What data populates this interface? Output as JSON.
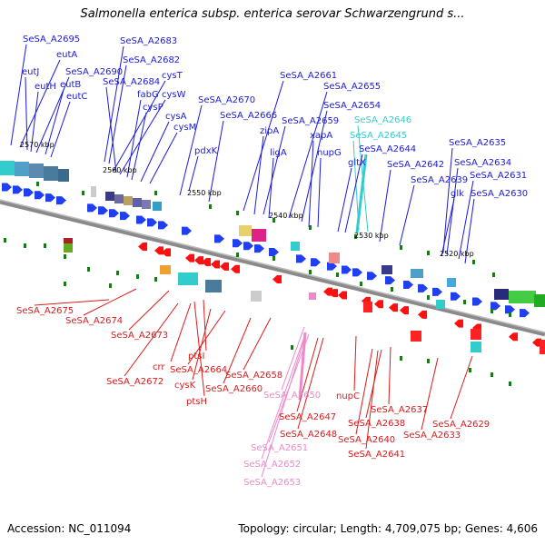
{
  "title": "Salmonella enterica subsp. enterica serovar Schwarzengrund s...",
  "footer": {
    "accession": "Accession: NC_011094",
    "stats": "Topology: circular; Length: 4,709,075 bp; Genes: 4,606"
  },
  "colors": {
    "top_label": "#1a1adc",
    "bottom_label": "#dc1a1a",
    "cyan_label": "#33cccc",
    "pink_label": "#ee88cc",
    "forward_arrow": "#1f3ff0",
    "reverse_arrow": "#ff1010",
    "backbone": "#8a8a8a",
    "tick_green": "#1a7a1a"
  },
  "kbp_ticks": [
    "2570 kbp",
    "2560 kbp",
    "2550 kbp",
    "2540 kbp",
    "2530 kbp",
    "2520 kbp"
  ],
  "top_labels": [
    {
      "text": "SeSA_A2695",
      "color": "blue"
    },
    {
      "text": "eutA",
      "color": "blue"
    },
    {
      "text": "SeSA_A2683",
      "color": "blue"
    },
    {
      "text": "SeSA_A2682",
      "color": "blue"
    },
    {
      "text": "eutJ",
      "color": "blue"
    },
    {
      "text": "SeSA_A2690",
      "color": "blue"
    },
    {
      "text": "cysT",
      "color": "blue"
    },
    {
      "text": "eutH",
      "color": "blue"
    },
    {
      "text": "eutB",
      "color": "blue"
    },
    {
      "text": "SeSA_A2684",
      "color": "blue"
    },
    {
      "text": "cysW",
      "color": "blue"
    },
    {
      "text": "eutC",
      "color": "blue"
    },
    {
      "text": "fabG",
      "color": "blue"
    },
    {
      "text": "cysP",
      "color": "blue"
    },
    {
      "text": "cysA",
      "color": "blue"
    },
    {
      "text": "cysM",
      "color": "blue"
    },
    {
      "text": "SeSA_A2670",
      "color": "blue"
    },
    {
      "text": "SeSA_A2666",
      "color": "blue"
    },
    {
      "text": "pdxK",
      "color": "blue"
    },
    {
      "text": "SeSA_A2661",
      "color": "blue"
    },
    {
      "text": "SeSA_A2655",
      "color": "blue"
    },
    {
      "text": "SeSA_A2654",
      "color": "blue"
    },
    {
      "text": "SeSA_A2659",
      "color": "blue"
    },
    {
      "text": "SeSA_A2646",
      "color": "cyan"
    },
    {
      "text": "zipA",
      "color": "blue"
    },
    {
      "text": "xapA",
      "color": "blue"
    },
    {
      "text": "SeSA_A2645",
      "color": "cyan"
    },
    {
      "text": "ligA",
      "color": "blue"
    },
    {
      "text": "nupG",
      "color": "blue"
    },
    {
      "text": "SeSA_A2644",
      "color": "blue"
    },
    {
      "text": "gltX",
      "color": "blue"
    },
    {
      "text": "SeSA_A2642",
      "color": "blue"
    },
    {
      "text": "SeSA_A2635",
      "color": "blue"
    },
    {
      "text": "SeSA_A2634",
      "color": "blue"
    },
    {
      "text": "SeSA_A2639",
      "color": "blue"
    },
    {
      "text": "SeSA_A2631",
      "color": "blue"
    },
    {
      "text": "glk",
      "color": "blue"
    },
    {
      "text": "SeSA_A2630",
      "color": "blue"
    }
  ],
  "bottom_labels": [
    {
      "text": "SeSA_A2675",
      "color": "red"
    },
    {
      "text": "SeSA_A2674",
      "color": "red"
    },
    {
      "text": "SeSA_A2673",
      "color": "red"
    },
    {
      "text": "ptsI",
      "color": "red"
    },
    {
      "text": "crr",
      "color": "red"
    },
    {
      "text": "SeSA_A2664",
      "color": "red"
    },
    {
      "text": "SeSA_A2672",
      "color": "red"
    },
    {
      "text": "cysK",
      "color": "red"
    },
    {
      "text": "SeSA_A2658",
      "color": "red"
    },
    {
      "text": "ptsH",
      "color": "red"
    },
    {
      "text": "SeSA_A2660",
      "color": "red"
    },
    {
      "text": "SeSA_A2650",
      "color": "pink"
    },
    {
      "text": "nupC",
      "color": "red"
    },
    {
      "text": "SeSA_A2637",
      "color": "red"
    },
    {
      "text": "SeSA_A2647",
      "color": "red"
    },
    {
      "text": "SeSA_A2638",
      "color": "red"
    },
    {
      "text": "SeSA_A2629",
      "color": "red"
    },
    {
      "text": "SeSA_A2648",
      "color": "red"
    },
    {
      "text": "SeSA_A2633",
      "color": "red"
    },
    {
      "text": "SeSA_A2640",
      "color": "red"
    },
    {
      "text": "SeSA_A2651",
      "color": "pink"
    },
    {
      "text": "SeSA_A2641",
      "color": "red"
    },
    {
      "text": "SeSA_A2652",
      "color": "pink"
    },
    {
      "text": "SeSA_A2653",
      "color": "pink"
    }
  ]
}
